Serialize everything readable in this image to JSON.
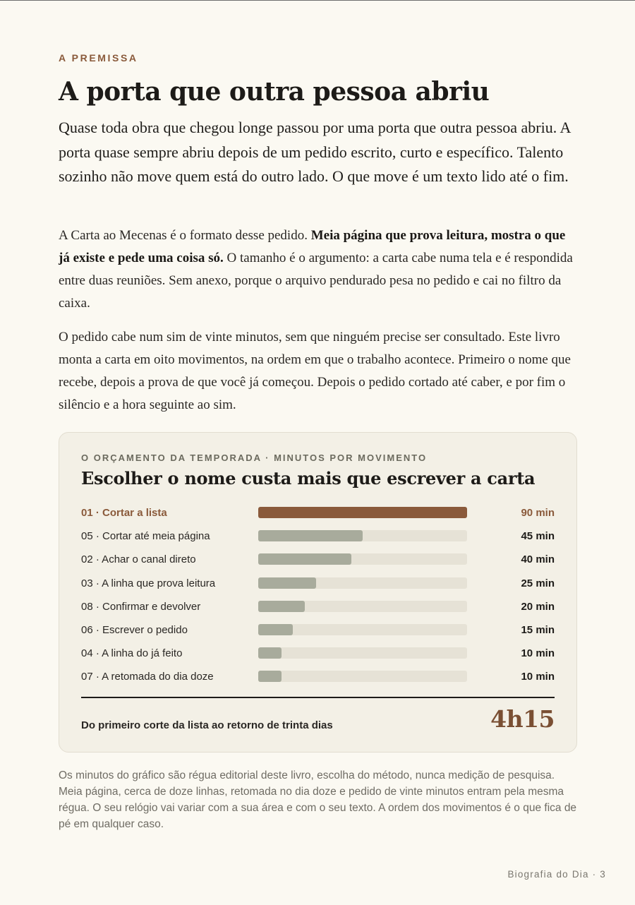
{
  "premise": {
    "eyebrow": "A PREMISSA",
    "title": "A porta que outra pessoa abriu",
    "lead": "Quase toda obra que chegou longe passou por uma porta que outra pessoa abriu. A porta quase sempre abriu depois de um pedido escrito, curto e específico. Talento sozinho não move quem está do outro lado. O que move é um texto lido até o fim.",
    "p1_a": "A Carta ao Mecenas é o formato desse pedido. ",
    "p1_bold": "Meia página que prova leitura, mostra o que já existe e pede uma coisa só.",
    "p1_b": " O tamanho é o argumento: a carta cabe numa tela e é respondida entre duas reuniões. Sem anexo, porque o arquivo pendurado pesa no pedido e cai no filtro da caixa.",
    "p2": "O pedido cabe num sim de vinte minutos, sem que ninguém precise ser consultado. Este livro monta a carta em oito movimentos, na ordem em que o trabalho acontece. Primeiro o nome que recebe, depois a prova de que você já começou. Depois o pedido cortado até caber, e por fim o silêncio e a hora seguinte ao sim."
  },
  "card": {
    "eyebrow": "O ORÇAMENTO DA TEMPORADA · MINUTOS POR MOVIMENTO",
    "title": "Escolher o nome custa mais que escrever a carta",
    "total_label": "Do primeiro corte da lista ao retorno de trinta dias",
    "total_value": "4h15"
  },
  "chart_data": {
    "type": "bar",
    "orientation": "horizontal",
    "title": "Escolher o nome custa mais que escrever a carta",
    "xlim": [
      0,
      90
    ],
    "highlight_color": "#8a5a3b",
    "bar_color": "#a8ab9c",
    "track_color": "#e6e2d6",
    "categories": [
      "01 · Cortar a lista",
      "05 · Cortar até meia página",
      "02 · Achar o canal direto",
      "03 · A linha que prova leitura",
      "08 · Confirmar e devolver",
      "06 · Escrever o pedido",
      "04 · A linha do já feito",
      "07 · A retomada do dia doze"
    ],
    "values": [
      90,
      45,
      40,
      25,
      20,
      15,
      10,
      10
    ],
    "value_labels": [
      "90 min",
      "45 min",
      "40 min",
      "25 min",
      "20 min",
      "15 min",
      "10 min",
      "10 min"
    ],
    "highlight_index": 0
  },
  "note": "Os minutos do gráfico são régua editorial deste livro, escolha do método, nunca medição de pesquisa. Meia página, cerca de doze linhas, retomada no dia doze e pedido de vinte minutos entram pela mesma régua. O seu relógio vai variar com a sua área e com o seu texto. A ordem dos movimentos é o que fica de pé em qualquer caso.",
  "footer": "Biografia do Dia · 3"
}
